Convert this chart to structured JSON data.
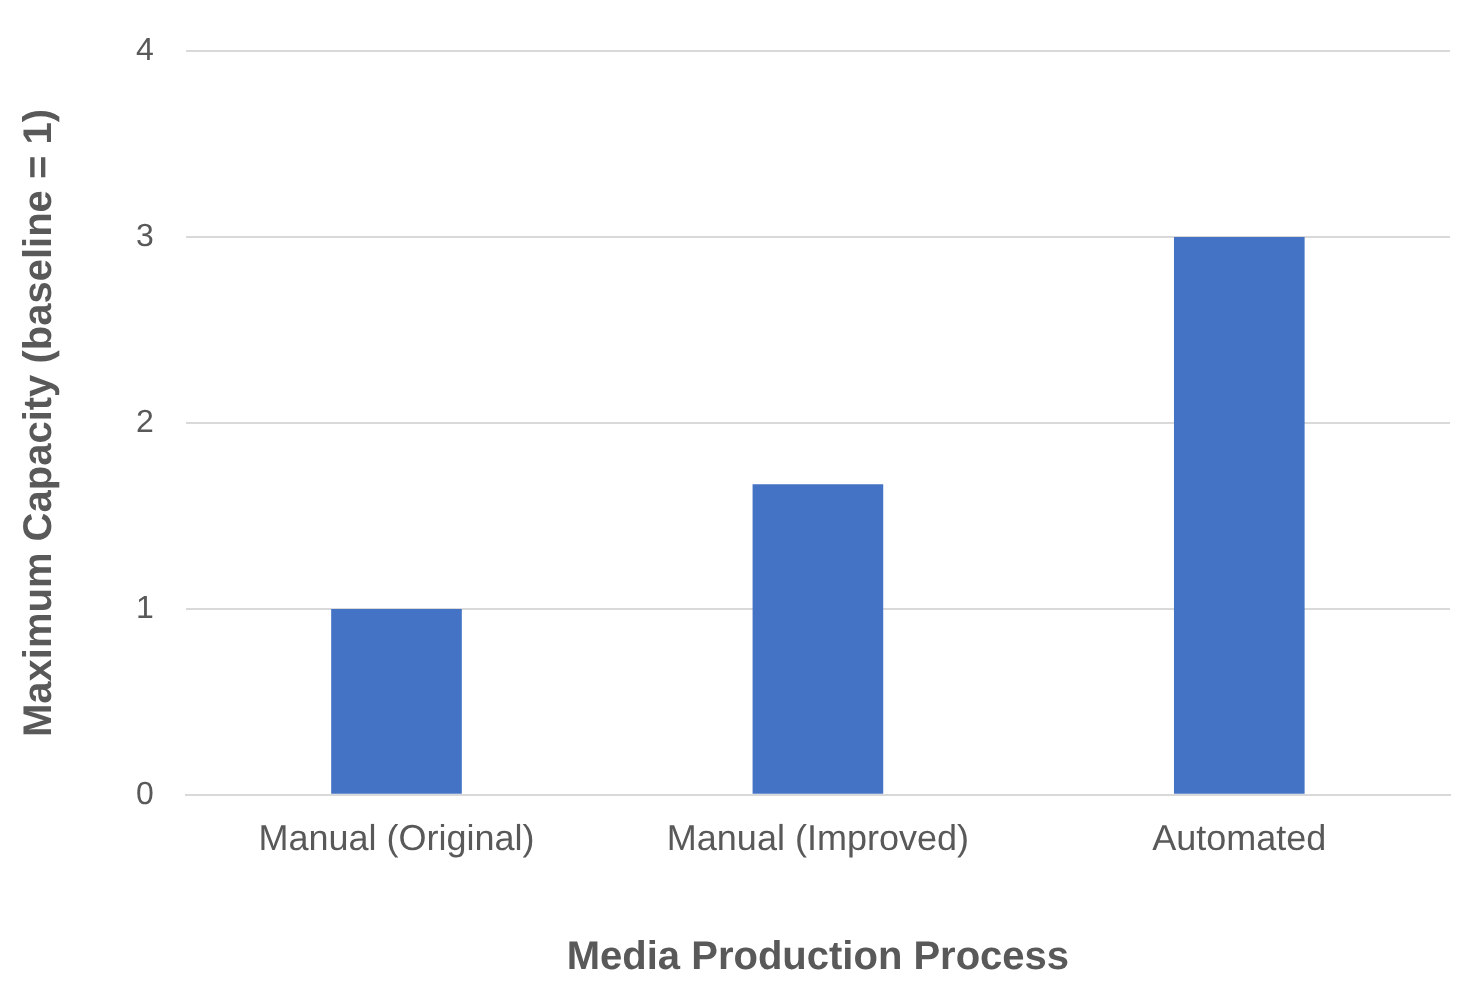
{
  "chart_data": {
    "type": "bar",
    "xlabel": "Media Production Process",
    "ylabel": "Maximum Capacity (baseline = 1)",
    "categories": [
      "Manual (Original)",
      "Manual (Improved)",
      "Automated"
    ],
    "values": [
      1,
      1.67,
      3
    ],
    "color": "#4472c4",
    "ylim": [
      0,
      4
    ],
    "yticks": [
      0,
      1,
      2,
      3,
      4
    ],
    "grid": "y",
    "legend": false
  }
}
